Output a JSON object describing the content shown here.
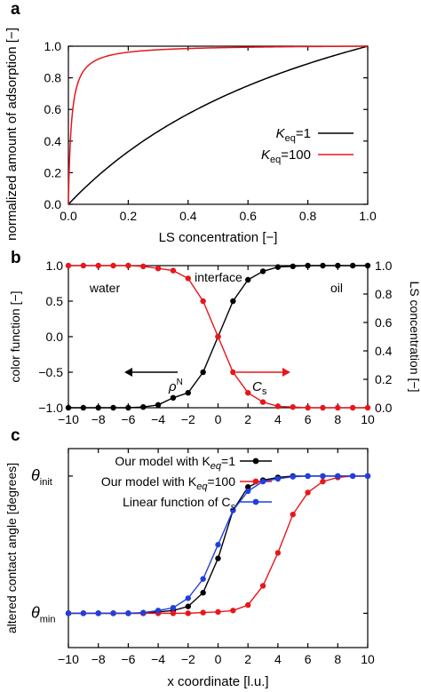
{
  "panels": {
    "a": "a",
    "b": "b",
    "c": "c"
  },
  "chart_data": [
    {
      "panel": "a",
      "type": "line",
      "xlabel": "LS concentration [−]",
      "ylabel": "normalized amount of adsorption [−]",
      "xlim": [
        0,
        1
      ],
      "ylim": [
        0,
        1.0
      ],
      "xticks": [
        "0.0",
        "0.2",
        "0.4",
        "0.6",
        "0.8",
        "1.0"
      ],
      "yticks": [
        "0.0",
        "0.2",
        "0.4",
        "0.6",
        "0.8",
        "1.0"
      ],
      "grid": false,
      "legend_position": "right",
      "series": [
        {
          "name": "K_eq=1",
          "label_main": "K",
          "label_sub": "eq",
          "label_tail": "=1",
          "color": "#000000",
          "K": 1,
          "x": [
            0,
            0.1,
            0.2,
            0.3,
            0.4,
            0.5,
            0.6,
            0.7,
            0.8,
            0.9,
            1.0
          ],
          "y": [
            0,
            0.18,
            0.333,
            0.462,
            0.571,
            0.667,
            0.75,
            0.824,
            0.889,
            0.947,
            1.0
          ]
        },
        {
          "name": "K_eq=100",
          "label_main": "K",
          "label_sub": "eq",
          "label_tail": "=100",
          "color": "#e8161b",
          "K": 100,
          "x": [
            0,
            0.01,
            0.02,
            0.05,
            0.1,
            0.2,
            0.4,
            0.6,
            0.8,
            1.0
          ],
          "y": [
            0,
            0.505,
            0.673,
            0.841,
            0.917,
            0.957,
            0.98,
            0.987,
            0.99,
            1.0
          ]
        }
      ]
    },
    {
      "panel": "b",
      "type": "line",
      "xlim": [
        -10,
        10
      ],
      "ylim_left": [
        -1.0,
        1.0
      ],
      "ylim_right": [
        0.0,
        1.0
      ],
      "ylabel_left": "color function [−]",
      "ylabel_right": "LS concentration [−]",
      "xticks": [
        "−10",
        "−8",
        "−6",
        "−4",
        "−2",
        "0",
        "2",
        "4",
        "6",
        "8",
        "10"
      ],
      "yticks_left": [
        "−1.0",
        "−0.5",
        "0.0",
        "0.5",
        "1.0"
      ],
      "yticks_right": [
        "0.0",
        "0.2",
        "0.4",
        "0.6",
        "0.8",
        "1.0"
      ],
      "annotations": {
        "water": "water",
        "interface": "interface",
        "oil": "oil"
      },
      "arrow_labels": {
        "rho": "ρ",
        "rho_sup": "N",
        "cs": "C",
        "cs_sub": "s"
      },
      "series": [
        {
          "name": "rho_N",
          "color": "#000000",
          "x": [
            -10,
            -9,
            -8,
            -7,
            -6,
            -5,
            -4,
            -3,
            -2,
            -1,
            0,
            1,
            2,
            3,
            4,
            5,
            6,
            7,
            8,
            9,
            10
          ],
          "y": [
            -1,
            -1,
            -1,
            -1,
            -1,
            -0.99,
            -0.96,
            -0.86,
            -0.79,
            -0.5,
            0,
            0.5,
            0.8,
            0.92,
            0.98,
            0.99,
            1,
            1,
            1,
            1,
            1
          ]
        },
        {
          "name": "C_s",
          "color": "#e8161b",
          "x": [
            -10,
            -9,
            -8,
            -7,
            -6,
            -5,
            -4,
            -3,
            -2,
            -1,
            0,
            1,
            2,
            3,
            4,
            5,
            6,
            7,
            8,
            9,
            10
          ],
          "y": [
            1,
            1,
            1,
            1,
            1,
            0.99,
            0.96,
            0.93,
            0.82,
            0.5,
            0,
            -0.5,
            -0.79,
            -0.92,
            -0.98,
            -0.99,
            -1,
            -1,
            -1,
            -1,
            -1
          ]
        }
      ]
    },
    {
      "panel": "c",
      "type": "line",
      "xlabel": "x coordinate [l.u.]",
      "ylabel": "altered contact angle [degrees]",
      "xlim": [
        -10,
        10
      ],
      "ylim": [
        -0.25,
        1.2
      ],
      "xticks": [
        "−10",
        "−8",
        "−6",
        "−4",
        "−2",
        "0",
        "2",
        "4",
        "6",
        "8",
        "10"
      ],
      "ytick_labels": [
        {
          "main": "θ",
          "sub": "init",
          "value": 1
        },
        {
          "main": "θ",
          "sub": "min",
          "value": 0
        }
      ],
      "legend_position": "top-left",
      "series": [
        {
          "name": "Our model with K_eq=1",
          "label_main": "Our model with K",
          "label_sub": "eq",
          "label_tail": "=1",
          "color": "#000000",
          "x": [
            -10,
            -9,
            -8,
            -7,
            -6,
            -5,
            -4,
            -3,
            -2,
            -1,
            0,
            1,
            2,
            3,
            4,
            5,
            6,
            7,
            8,
            9,
            10
          ],
          "y": [
            0,
            0,
            0,
            0,
            0,
            0,
            0.01,
            0.02,
            0.05,
            0.15,
            0.4,
            0.75,
            0.92,
            0.97,
            0.99,
            1,
            1,
            1,
            1,
            1,
            1
          ]
        },
        {
          "name": "Our model with K_eq=100",
          "label_main": "Our model with K",
          "label_sub": "eq",
          "label_tail": "=100",
          "color": "#e8161b",
          "x": [
            -10,
            -9,
            -8,
            -7,
            -6,
            -5,
            -4,
            -3,
            -2,
            -1,
            0,
            1,
            2,
            3,
            4,
            5,
            6,
            7,
            8,
            9,
            10
          ],
          "y": [
            0,
            0,
            0,
            0,
            0,
            0,
            0,
            0,
            0,
            0.005,
            0.01,
            0.02,
            0.06,
            0.2,
            0.44,
            0.72,
            0.88,
            0.96,
            0.99,
            1,
            1
          ]
        },
        {
          "name": "Linear function of C_s",
          "label_main": "Linear function of C",
          "label_sub": "s",
          "label_tail": "",
          "color": "#1f3fe0",
          "x": [
            -10,
            -9,
            -8,
            -7,
            -6,
            -5,
            -4,
            -3,
            -2,
            -1,
            0,
            1,
            2,
            3,
            4,
            5,
            6,
            7,
            8,
            9,
            10
          ],
          "y": [
            0,
            0,
            0,
            0,
            0,
            0.005,
            0.02,
            0.04,
            0.11,
            0.25,
            0.5,
            0.75,
            0.89,
            0.96,
            0.98,
            0.995,
            1,
            1,
            1,
            1,
            1
          ]
        }
      ]
    }
  ]
}
